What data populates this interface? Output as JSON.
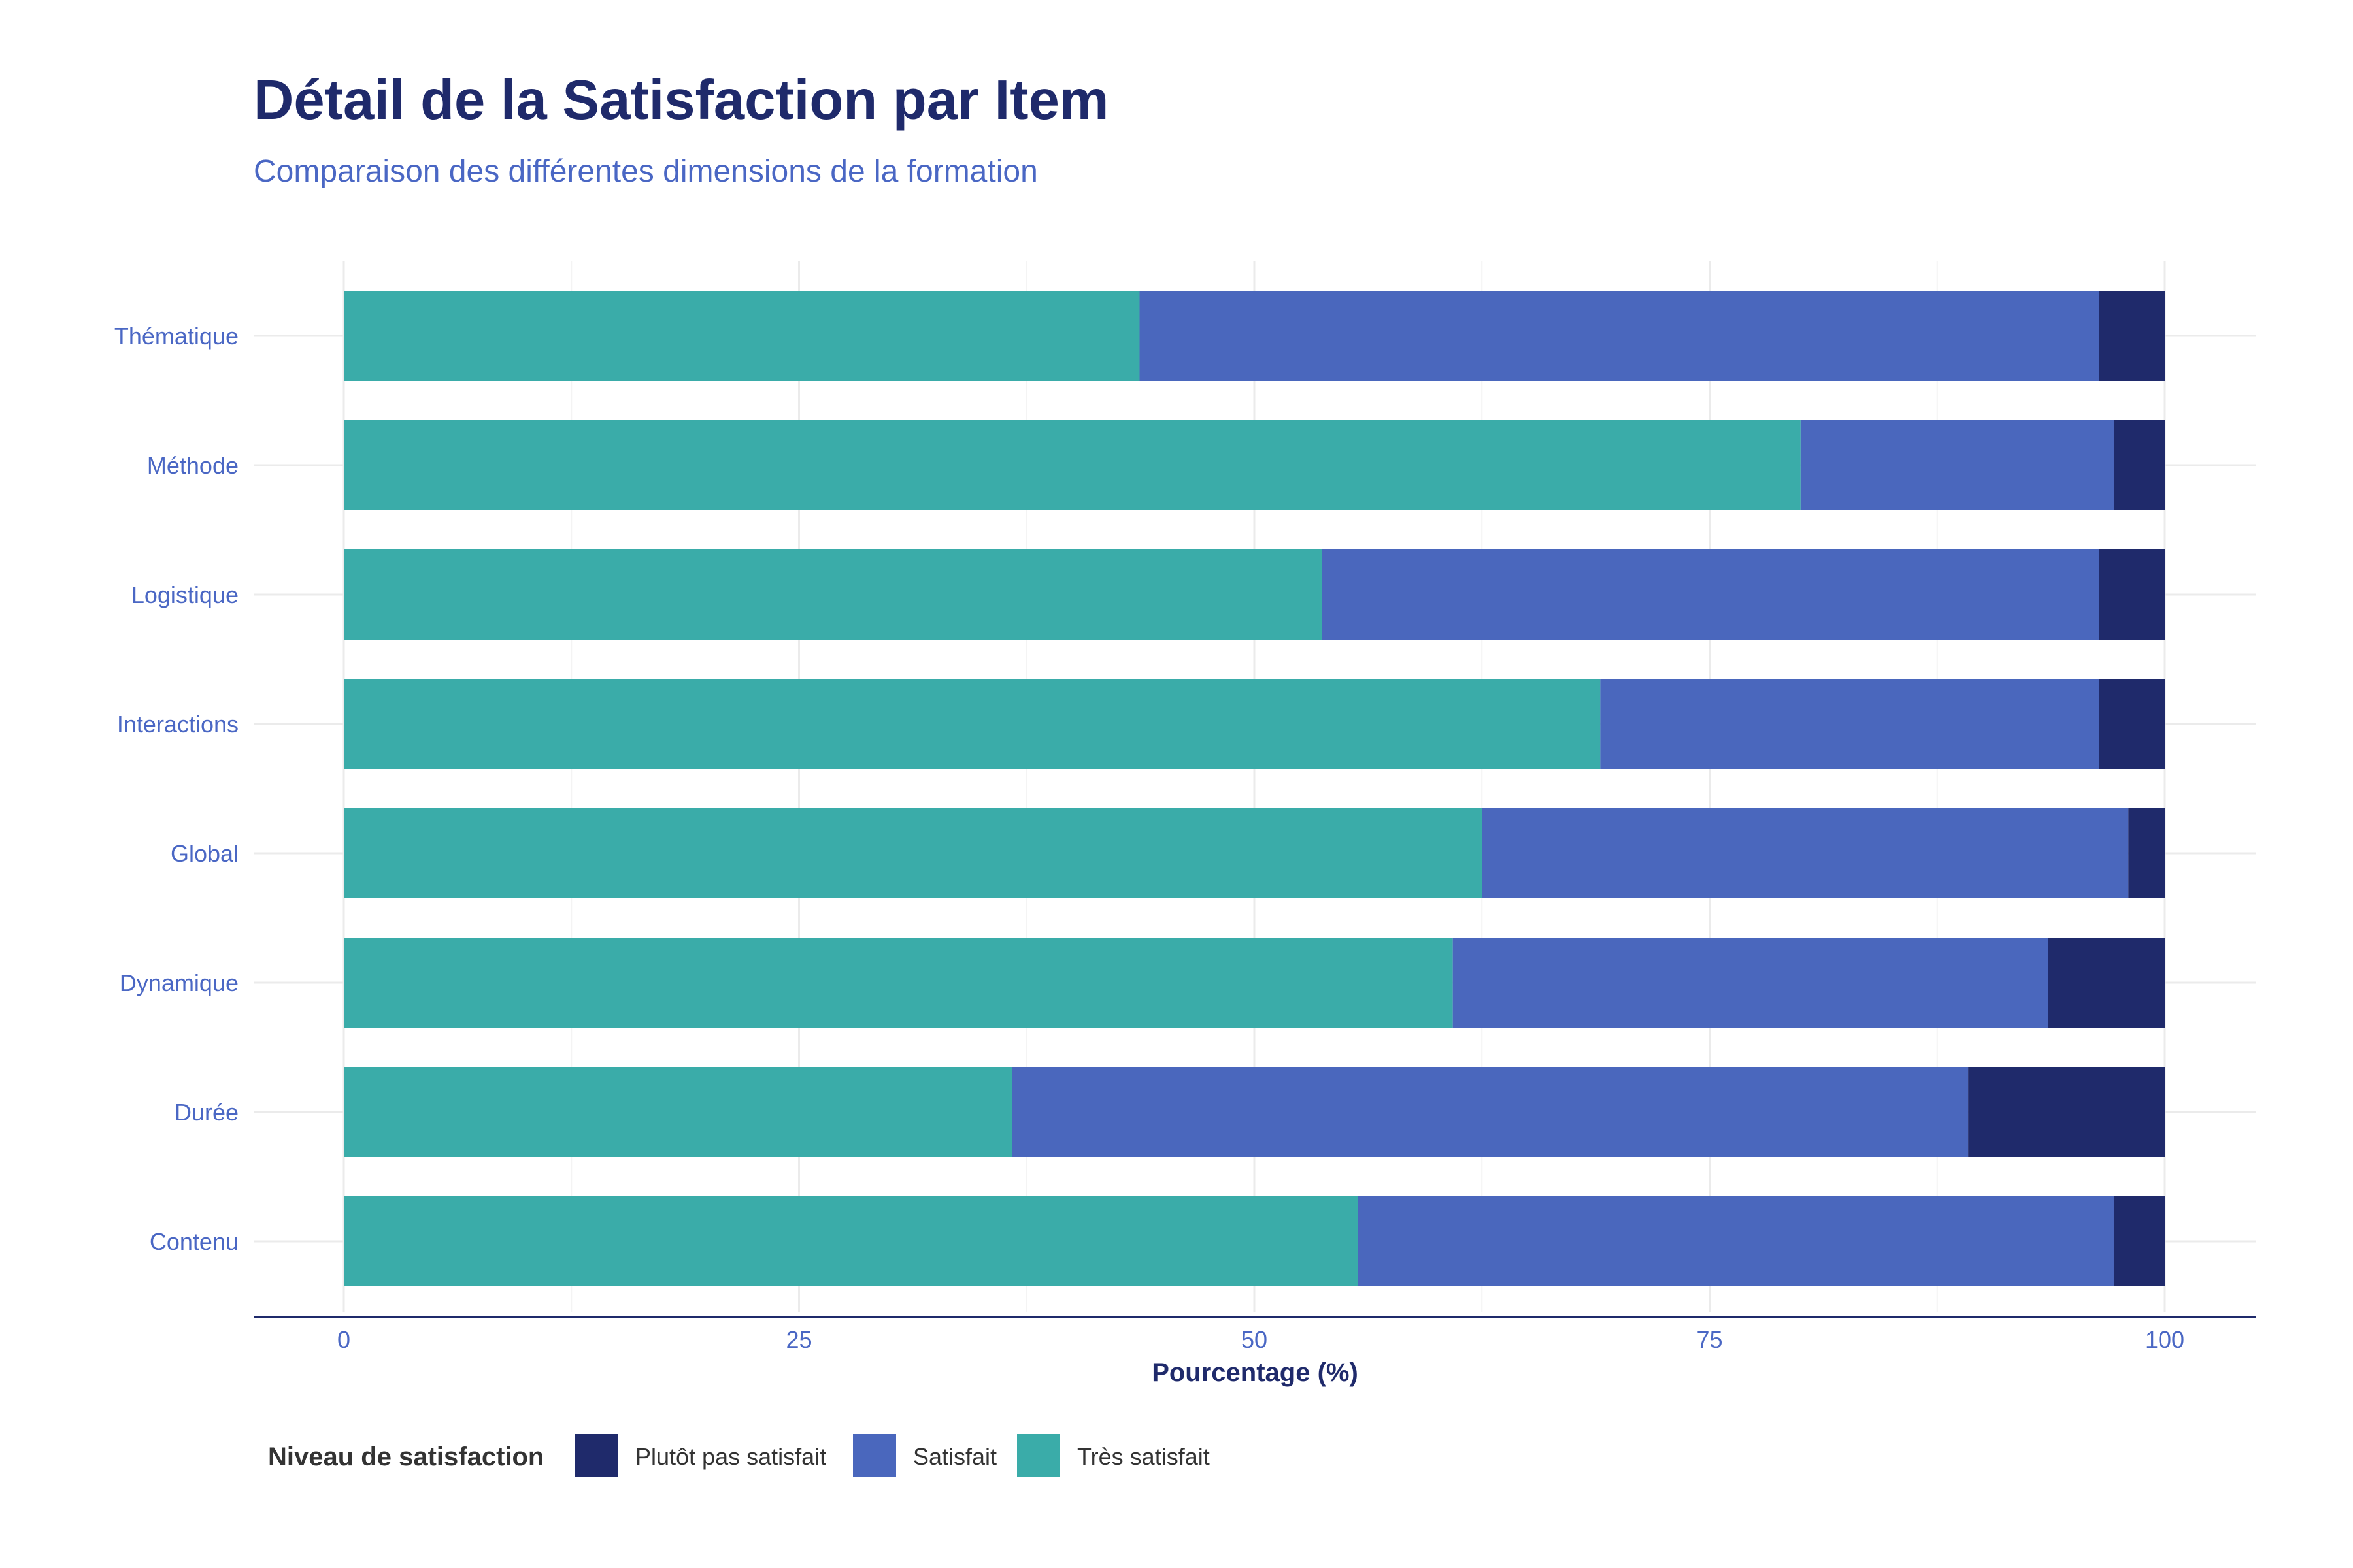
{
  "chart_data": {
    "type": "bar",
    "orientation": "horizontal",
    "stacked": true,
    "title": "Détail de la Satisfaction par Item",
    "subtitle": "Comparaison des différentes dimensions de la formation",
    "xlabel": "Pourcentage (%)",
    "ylabel": "",
    "xlim": [
      0,
      100
    ],
    "x_ticks": [
      "0",
      "25",
      "50",
      "75",
      "100"
    ],
    "grid": true,
    "legend_position": "bottom-left",
    "legend_title": "Niveau de satisfaction",
    "categories": [
      "Thématique",
      "Méthode",
      "Logistique",
      "Interactions",
      "Global",
      "Dynamique",
      "Durée",
      "Contenu"
    ],
    "series": [
      {
        "name": "Très satisfait",
        "color": "#3aaca9",
        "values": [
          43.7,
          80.0,
          53.7,
          69.0,
          62.5,
          60.9,
          36.7,
          55.7
        ]
      },
      {
        "name": "Satisfait",
        "color": "#4a67bd",
        "values": [
          52.7,
          17.2,
          42.7,
          27.4,
          35.5,
          32.7,
          52.5,
          41.5
        ]
      },
      {
        "name": "Plutôt pas satisfait",
        "color": "#1f2a6b",
        "values": [
          3.6,
          2.8,
          3.6,
          3.6,
          2.0,
          6.4,
          10.8,
          2.8
        ]
      }
    ],
    "legend_order": [
      "Plutôt pas satisfait",
      "Satisfait",
      "Très satisfait"
    ]
  }
}
